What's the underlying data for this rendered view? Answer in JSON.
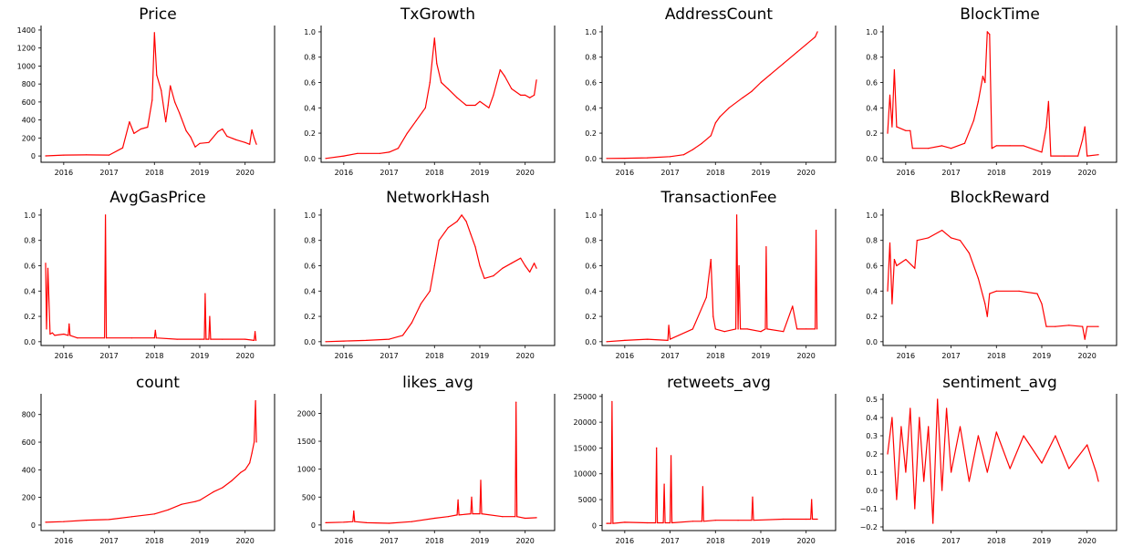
{
  "line_color": "#ff0000",
  "chart_data": [
    {
      "type": "line",
      "title": "Price",
      "xlim": [
        2015.5,
        2020.65
      ],
      "ylim": [
        -70,
        1450
      ],
      "xticks": [
        2016,
        2017,
        2018,
        2019,
        2020
      ],
      "yticks": [
        0,
        200,
        400,
        600,
        800,
        1000,
        1200,
        1400
      ],
      "ytick_labels": [
        "0",
        "200",
        "400",
        "600",
        "800",
        "1000",
        "1200",
        "1400"
      ],
      "x": [
        2015.6,
        2016.0,
        2016.5,
        2017.0,
        2017.3,
        2017.45,
        2017.55,
        2017.7,
        2017.85,
        2017.95,
        2018.0,
        2018.05,
        2018.15,
        2018.25,
        2018.3,
        2018.35,
        2018.45,
        2018.55,
        2018.7,
        2018.8,
        2018.9,
        2019.0,
        2019.2,
        2019.4,
        2019.5,
        2019.6,
        2019.8,
        2020.0,
        2020.1,
        2020.15,
        2020.2,
        2020.25
      ],
      "values": [
        1,
        10,
        12,
        10,
        90,
        380,
        250,
        300,
        320,
        620,
        1370,
        900,
        730,
        380,
        560,
        780,
        600,
        480,
        280,
        210,
        100,
        140,
        150,
        270,
        300,
        220,
        180,
        150,
        130,
        290,
        200,
        130
      ]
    },
    {
      "type": "line",
      "title": "TxGrowth",
      "xlim": [
        2015.5,
        2020.65
      ],
      "ylim": [
        -0.03,
        1.05
      ],
      "xticks": [
        2016,
        2017,
        2018,
        2019,
        2020
      ],
      "yticks": [
        0,
        0.2,
        0.4,
        0.6,
        0.8,
        1.0
      ],
      "ytick_labels": [
        "0.0",
        "0.2",
        "0.4",
        "0.6",
        "0.8",
        "1.0"
      ],
      "x": [
        2015.6,
        2016.0,
        2016.3,
        2016.8,
        2017.0,
        2017.2,
        2017.4,
        2017.6,
        2017.8,
        2017.9,
        2018.0,
        2018.05,
        2018.15,
        2018.3,
        2018.5,
        2018.7,
        2018.9,
        2019.0,
        2019.2,
        2019.3,
        2019.45,
        2019.55,
        2019.7,
        2019.9,
        2020.0,
        2020.1,
        2020.2,
        2020.25
      ],
      "values": [
        0.0,
        0.02,
        0.04,
        0.04,
        0.05,
        0.08,
        0.2,
        0.3,
        0.4,
        0.6,
        0.95,
        0.75,
        0.6,
        0.55,
        0.48,
        0.42,
        0.42,
        0.45,
        0.4,
        0.5,
        0.7,
        0.65,
        0.55,
        0.5,
        0.5,
        0.48,
        0.5,
        0.62
      ]
    },
    {
      "type": "line",
      "title": "AddressCount",
      "xlim": [
        2015.5,
        2020.65
      ],
      "ylim": [
        -0.03,
        1.05
      ],
      "xticks": [
        2016,
        2017,
        2018,
        2019,
        2020
      ],
      "yticks": [
        0,
        0.2,
        0.4,
        0.6,
        0.8,
        1.0
      ],
      "ytick_labels": [
        "0.0",
        "0.2",
        "0.4",
        "0.6",
        "0.8",
        "1.0"
      ],
      "x": [
        2015.6,
        2016.0,
        2016.5,
        2017.0,
        2017.3,
        2017.5,
        2017.7,
        2017.9,
        2018.0,
        2018.1,
        2018.3,
        2018.6,
        2018.8,
        2019.0,
        2019.2,
        2019.5,
        2019.8,
        2020.0,
        2020.2,
        2020.25
      ],
      "values": [
        0.0,
        0.002,
        0.005,
        0.015,
        0.03,
        0.07,
        0.12,
        0.18,
        0.28,
        0.33,
        0.4,
        0.48,
        0.53,
        0.6,
        0.66,
        0.75,
        0.84,
        0.9,
        0.96,
        1.0
      ]
    },
    {
      "type": "line",
      "title": "BlockTime",
      "xlim": [
        2015.5,
        2020.65
      ],
      "ylim": [
        -0.03,
        1.05
      ],
      "xticks": [
        2016,
        2017,
        2018,
        2019,
        2020
      ],
      "yticks": [
        0,
        0.2,
        0.4,
        0.6,
        0.8,
        1.0
      ],
      "ytick_labels": [
        "0.0",
        "0.2",
        "0.4",
        "0.6",
        "0.8",
        "1.0"
      ],
      "x": [
        2015.6,
        2015.65,
        2015.7,
        2015.75,
        2015.8,
        2016.0,
        2016.1,
        2016.15,
        2016.5,
        2016.8,
        2017.0,
        2017.3,
        2017.5,
        2017.6,
        2017.7,
        2017.75,
        2017.8,
        2017.85,
        2017.9,
        2018.0,
        2018.3,
        2018.6,
        2019.0,
        2019.1,
        2019.15,
        2019.2,
        2019.5,
        2019.8,
        2019.9,
        2019.95,
        2020.0,
        2020.25
      ],
      "values": [
        0.2,
        0.5,
        0.25,
        0.7,
        0.25,
        0.22,
        0.22,
        0.08,
        0.08,
        0.1,
        0.08,
        0.12,
        0.3,
        0.45,
        0.65,
        0.6,
        1.0,
        0.98,
        0.08,
        0.1,
        0.1,
        0.1,
        0.05,
        0.25,
        0.45,
        0.02,
        0.02,
        0.02,
        0.15,
        0.25,
        0.02,
        0.03
      ]
    },
    {
      "type": "line",
      "title": "AvgGasPrice",
      "xlim": [
        2015.5,
        2020.65
      ],
      "ylim": [
        -0.03,
        1.05
      ],
      "xticks": [
        2016,
        2017,
        2018,
        2019,
        2020
      ],
      "yticks": [
        0,
        0.2,
        0.4,
        0.6,
        0.8,
        1.0
      ],
      "ytick_labels": [
        "0.0",
        "0.2",
        "0.4",
        "0.6",
        "0.8",
        "1.0"
      ],
      "x": [
        2015.6,
        2015.62,
        2015.65,
        2015.7,
        2015.75,
        2015.8,
        2016.0,
        2016.1,
        2016.12,
        2016.14,
        2016.3,
        2016.9,
        2016.92,
        2016.94,
        2017.5,
        2018.0,
        2018.02,
        2018.04,
        2018.5,
        2019.0,
        2019.1,
        2019.12,
        2019.14,
        2019.2,
        2019.22,
        2019.24,
        2019.5,
        2020.0,
        2020.2,
        2020.22,
        2020.24
      ],
      "values": [
        0.62,
        0.1,
        0.58,
        0.06,
        0.07,
        0.05,
        0.06,
        0.05,
        0.14,
        0.05,
        0.03,
        0.03,
        1.0,
        0.03,
        0.03,
        0.03,
        0.09,
        0.03,
        0.02,
        0.02,
        0.02,
        0.38,
        0.02,
        0.02,
        0.2,
        0.02,
        0.02,
        0.02,
        0.01,
        0.08,
        0.01
      ]
    },
    {
      "type": "line",
      "title": "NetworkHash",
      "xlim": [
        2015.5,
        2020.65
      ],
      "ylim": [
        -0.03,
        1.05
      ],
      "xticks": [
        2016,
        2017,
        2018,
        2019,
        2020
      ],
      "yticks": [
        0,
        0.2,
        0.4,
        0.6,
        0.8,
        1.0
      ],
      "ytick_labels": [
        "0.0",
        "0.2",
        "0.4",
        "0.6",
        "0.8",
        "1.0"
      ],
      "x": [
        2015.6,
        2016.0,
        2016.5,
        2017.0,
        2017.3,
        2017.5,
        2017.7,
        2017.9,
        2018.0,
        2018.1,
        2018.3,
        2018.5,
        2018.6,
        2018.7,
        2018.8,
        2018.9,
        2019.0,
        2019.1,
        2019.3,
        2019.5,
        2019.7,
        2019.9,
        2020.0,
        2020.1,
        2020.2,
        2020.25
      ],
      "values": [
        0.0,
        0.005,
        0.01,
        0.02,
        0.05,
        0.15,
        0.3,
        0.4,
        0.6,
        0.8,
        0.9,
        0.95,
        1.0,
        0.95,
        0.85,
        0.75,
        0.6,
        0.5,
        0.52,
        0.58,
        0.62,
        0.66,
        0.6,
        0.55,
        0.62,
        0.58
      ]
    },
    {
      "type": "line",
      "title": "TransactionFee",
      "xlim": [
        2015.5,
        2020.65
      ],
      "ylim": [
        -0.03,
        1.05
      ],
      "xticks": [
        2016,
        2017,
        2018,
        2019,
        2020
      ],
      "yticks": [
        0,
        0.2,
        0.4,
        0.6,
        0.8,
        1.0
      ],
      "ytick_labels": [
        "0.0",
        "0.2",
        "0.4",
        "0.6",
        "0.8",
        "1.0"
      ],
      "x": [
        2015.6,
        2016.0,
        2016.5,
        2016.95,
        2016.97,
        2017.0,
        2017.5,
        2017.8,
        2017.9,
        2017.95,
        2018.0,
        2018.2,
        2018.45,
        2018.47,
        2018.5,
        2018.52,
        2018.55,
        2018.7,
        2019.0,
        2019.1,
        2019.12,
        2019.14,
        2019.5,
        2019.7,
        2019.8,
        2020.0,
        2020.2,
        2020.22,
        2020.24
      ],
      "values": [
        0.0,
        0.01,
        0.02,
        0.01,
        0.13,
        0.02,
        0.1,
        0.35,
        0.65,
        0.2,
        0.1,
        0.08,
        0.1,
        1.0,
        0.1,
        0.6,
        0.1,
        0.1,
        0.08,
        0.1,
        0.75,
        0.1,
        0.08,
        0.28,
        0.1,
        0.1,
        0.1,
        0.88,
        0.1
      ]
    },
    {
      "type": "line",
      "title": "BlockReward",
      "xlim": [
        2015.5,
        2020.65
      ],
      "ylim": [
        -0.03,
        1.05
      ],
      "xticks": [
        2016,
        2017,
        2018,
        2019,
        2020
      ],
      "yticks": [
        0,
        0.2,
        0.4,
        0.6,
        0.8,
        1.0
      ],
      "ytick_labels": [
        "0.0",
        "0.2",
        "0.4",
        "0.6",
        "0.8",
        "1.0"
      ],
      "x": [
        2015.6,
        2015.65,
        2015.7,
        2015.75,
        2015.8,
        2016.0,
        2016.2,
        2016.25,
        2016.5,
        2016.8,
        2017.0,
        2017.2,
        2017.4,
        2017.6,
        2017.75,
        2017.8,
        2017.85,
        2018.0,
        2018.5,
        2018.9,
        2019.0,
        2019.1,
        2019.3,
        2019.6,
        2019.9,
        2019.95,
        2020.0,
        2020.25
      ],
      "values": [
        0.4,
        0.78,
        0.3,
        0.65,
        0.6,
        0.65,
        0.58,
        0.8,
        0.82,
        0.88,
        0.82,
        0.8,
        0.7,
        0.5,
        0.3,
        0.2,
        0.38,
        0.4,
        0.4,
        0.38,
        0.3,
        0.12,
        0.12,
        0.13,
        0.12,
        0.02,
        0.12,
        0.12
      ]
    },
    {
      "type": "line",
      "title": "count",
      "xlim": [
        2015.5,
        2020.65
      ],
      "ylim": [
        -40,
        950
      ],
      "xticks": [
        2016,
        2017,
        2018,
        2019,
        2020
      ],
      "yticks": [
        0,
        200,
        400,
        600,
        800
      ],
      "ytick_labels": [
        "0",
        "200",
        "400",
        "600",
        "800"
      ],
      "x": [
        2015.6,
        2016.0,
        2016.5,
        2017.0,
        2017.5,
        2018.0,
        2018.3,
        2018.6,
        2018.9,
        2019.0,
        2019.3,
        2019.5,
        2019.7,
        2019.9,
        2020.0,
        2020.1,
        2020.15,
        2020.2,
        2020.23,
        2020.25
      ],
      "values": [
        20,
        25,
        35,
        40,
        60,
        80,
        110,
        150,
        170,
        180,
        240,
        270,
        320,
        380,
        400,
        450,
        520,
        600,
        900,
        600
      ]
    },
    {
      "type": "line",
      "title": "likes_avg",
      "xlim": [
        2015.5,
        2020.65
      ],
      "ylim": [
        -100,
        2350
      ],
      "xticks": [
        2016,
        2017,
        2018,
        2019,
        2020
      ],
      "yticks": [
        0,
        500,
        1000,
        1500,
        2000
      ],
      "ytick_labels": [
        "0",
        "500",
        "1000",
        "1500",
        "2000"
      ],
      "x": [
        2015.6,
        2016.0,
        2016.2,
        2016.22,
        2016.24,
        2016.5,
        2017.0,
        2017.5,
        2018.0,
        2018.3,
        2018.5,
        2018.52,
        2018.54,
        2018.8,
        2018.82,
        2018.84,
        2019.0,
        2019.02,
        2019.04,
        2019.5,
        2019.78,
        2019.8,
        2019.82,
        2020.0,
        2020.25
      ],
      "values": [
        40,
        50,
        60,
        250,
        60,
        40,
        30,
        60,
        120,
        150,
        180,
        450,
        180,
        200,
        500,
        200,
        200,
        800,
        200,
        150,
        150,
        2200,
        150,
        120,
        130
      ]
    },
    {
      "type": "line",
      "title": "retweets_avg",
      "xlim": [
        2015.5,
        2020.65
      ],
      "ylim": [
        -1000,
        25500
      ],
      "xticks": [
        2016,
        2017,
        2018,
        2019,
        2020
      ],
      "yticks": [
        0,
        5000,
        10000,
        15000,
        20000,
        25000
      ],
      "ytick_labels": [
        "0",
        "5000",
        "10000",
        "15000",
        "20000",
        "25000"
      ],
      "x": [
        2015.6,
        2015.7,
        2015.72,
        2015.74,
        2016.0,
        2016.5,
        2016.68,
        2016.7,
        2016.72,
        2016.85,
        2016.87,
        2016.89,
        2017.0,
        2017.02,
        2017.04,
        2017.5,
        2017.7,
        2017.72,
        2017.74,
        2018.0,
        2018.5,
        2018.8,
        2018.82,
        2018.84,
        2019.5,
        2020.0,
        2020.1,
        2020.12,
        2020.14,
        2020.25
      ],
      "values": [
        400,
        400,
        24000,
        400,
        600,
        500,
        500,
        15000,
        500,
        500,
        8000,
        500,
        500,
        13500,
        500,
        800,
        800,
        7500,
        800,
        1000,
        1000,
        1000,
        5500,
        1000,
        1200,
        1200,
        1200,
        5000,
        1200,
        1200
      ]
    },
    {
      "type": "line",
      "title": "sentiment_avg",
      "xlim": [
        2015.5,
        2020.65
      ],
      "ylim": [
        -0.22,
        0.53
      ],
      "xticks": [
        2016,
        2017,
        2018,
        2019,
        2020
      ],
      "yticks": [
        -0.2,
        -0.1,
        0.0,
        0.1,
        0.2,
        0.3,
        0.4,
        0.5
      ],
      "ytick_labels": [
        "−0.2",
        "−0.1",
        "0.0",
        "0.1",
        "0.2",
        "0.3",
        "0.4",
        "0.5"
      ],
      "x": [
        2015.6,
        2015.7,
        2015.8,
        2015.9,
        2016.0,
        2016.1,
        2016.2,
        2016.3,
        2016.4,
        2016.5,
        2016.6,
        2016.7,
        2016.8,
        2016.9,
        2017.0,
        2017.2,
        2017.4,
        2017.6,
        2017.8,
        2018.0,
        2018.3,
        2018.6,
        2019.0,
        2019.3,
        2019.6,
        2020.0,
        2020.2,
        2020.25
      ],
      "values": [
        0.2,
        0.4,
        -0.05,
        0.35,
        0.1,
        0.45,
        -0.1,
        0.4,
        0.05,
        0.35,
        -0.18,
        0.5,
        0.0,
        0.45,
        0.1,
        0.35,
        0.05,
        0.3,
        0.1,
        0.32,
        0.12,
        0.3,
        0.15,
        0.3,
        0.12,
        0.25,
        0.1,
        0.05
      ]
    }
  ]
}
